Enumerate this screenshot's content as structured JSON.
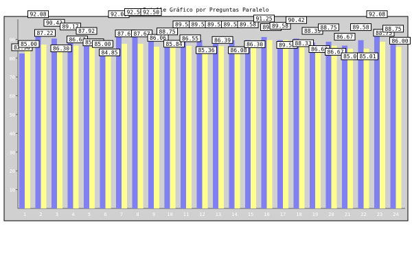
{
  "chart_data": {
    "type": "bar",
    "title": "Detalle Gráfico por Preguntas Paralelo",
    "xlabel": "",
    "ylabel": "",
    "ylim": [
      0,
      95
    ],
    "yticks": [
      10,
      20,
      30,
      40,
      50,
      60,
      70,
      80,
      90
    ],
    "grid": false,
    "categories": [
      "1",
      "2",
      "3",
      "4",
      "5",
      "6",
      "7",
      "8",
      "9",
      "10",
      "11",
      "12",
      "13",
      "14",
      "15",
      "16",
      "17",
      "18",
      "19",
      "20",
      "21",
      "22",
      "23",
      "24"
    ],
    "series": [
      {
        "values": [
          82.5,
          92.08,
          90.42,
          89.17,
          87.92,
          85.0,
          92.08,
          92.5,
          92.5,
          88.75,
          89.58,
          89.58,
          89.58,
          89.58,
          89.58,
          91.25,
          89.58,
          90.42,
          88.33,
          88.75,
          86.67,
          89.58,
          92.08,
          88.75
        ]
      },
      {
        "values": [
          85.0,
          87.22,
          86.3,
          86.67,
          85.87,
          84.85,
          87.67,
          87.67,
          86.06,
          85.84,
          86.55,
          85.36,
          86.39,
          86.08,
          86.3,
          89.58,
          89.58,
          88.33,
          86.67,
          86.67,
          85.01,
          85.01,
          88.75,
          86.0
        ]
      }
    ],
    "labels": [
      [
        "82.50",
        "85.00"
      ],
      [
        "92.08",
        "87.22"
      ],
      [
        "90.42",
        "86.30"
      ],
      [
        "89.17",
        "86.67"
      ],
      [
        "87.92",
        "85.87"
      ],
      [
        "85.00",
        "84.85"
      ],
      [
        "92.08",
        "87.67"
      ],
      [
        "92.50",
        "87.67"
      ],
      [
        "92.50",
        "86.06"
      ],
      [
        "88.75",
        "85.84"
      ],
      [
        "89.58",
        "86.55"
      ],
      [
        "89.58",
        "85.36"
      ],
      [
        "89.58",
        "86.39"
      ],
      [
        "89.58",
        "86.08"
      ],
      [
        "89.58",
        "86.30"
      ],
      [
        "91.25",
        "89.58"
      ],
      [
        "89.58",
        "89.58"
      ],
      [
        "90.42",
        "88.33"
      ],
      [
        "88.33",
        "86.67"
      ],
      [
        "88.75",
        "86.67"
      ],
      [
        "86.67",
        "85.01"
      ],
      [
        "89.58",
        "85.01"
      ],
      [
        "92.08",
        "88.75"
      ],
      [
        "88.75",
        "86.00"
      ]
    ],
    "colors": {
      "series1": "#8080f0",
      "series2": "#ffff90",
      "plot_background": "#d0d0d0",
      "frame": "#000000",
      "text": "#000000",
      "label_box": "#ffffff"
    }
  }
}
